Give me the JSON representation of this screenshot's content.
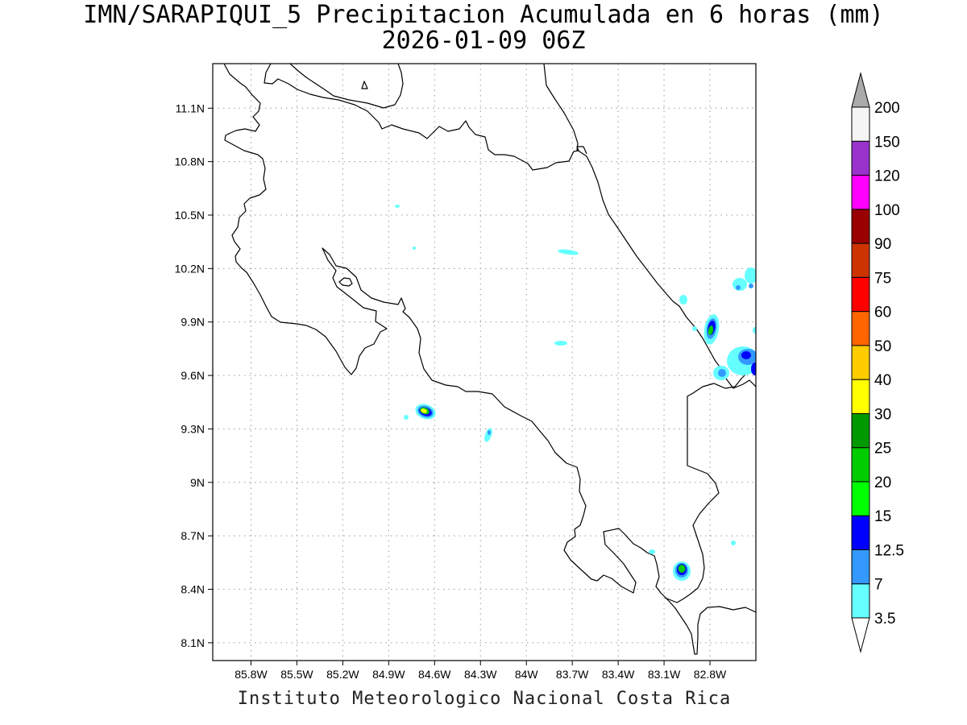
{
  "title": {
    "line1": "IMN/SARAPIQUI_5 Precipitacion Acumulada en 6 horas (mm)",
    "line2": "2026-01-09 06Z"
  },
  "footer": "Instituto Meteorologico Nacional Costa Rica",
  "map": {
    "lon_range": [
      -86.05,
      -82.5
    ],
    "lat_range": [
      8.0,
      11.35
    ],
    "lon_ticks": [
      "85.8W",
      "85.5W",
      "85.2W",
      "84.9W",
      "84.6W",
      "84.3W",
      "84W",
      "83.7W",
      "83.4W",
      "83.1W",
      "82.8W"
    ],
    "lat_ticks": [
      "11.1N",
      "10.8N",
      "10.5N",
      "10.2N",
      "9.9N",
      "9.6N",
      "9.3N",
      "9N",
      "8.7N",
      "8.4N",
      "8.1N"
    ],
    "grid": true
  },
  "legend": {
    "bins": [
      {
        "label": "3.5",
        "color": "#66ffff"
      },
      {
        "label": "7",
        "color": "#3399ff"
      },
      {
        "label": "12.5",
        "color": "#0000ff"
      },
      {
        "label": "15",
        "color": "#00ff00"
      },
      {
        "label": "20",
        "color": "#00cc00"
      },
      {
        "label": "25",
        "color": "#009900"
      },
      {
        "label": "30",
        "color": "#ffff00"
      },
      {
        "label": "40",
        "color": "#ffcc00"
      },
      {
        "label": "50",
        "color": "#ff6600"
      },
      {
        "label": "60",
        "color": "#ff0000"
      },
      {
        "label": "75",
        "color": "#cc3300"
      },
      {
        "label": "90",
        "color": "#990000"
      },
      {
        "label": "100",
        "color": "#ff00ff"
      },
      {
        "label": "120",
        "color": "#9933cc"
      },
      {
        "label": "150",
        "color": "#f5f5f5"
      },
      {
        "label": "200",
        "color": "#aaaaaa"
      }
    ],
    "under_color": "#ffffff",
    "over_color": "#aaaaaa"
  }
}
